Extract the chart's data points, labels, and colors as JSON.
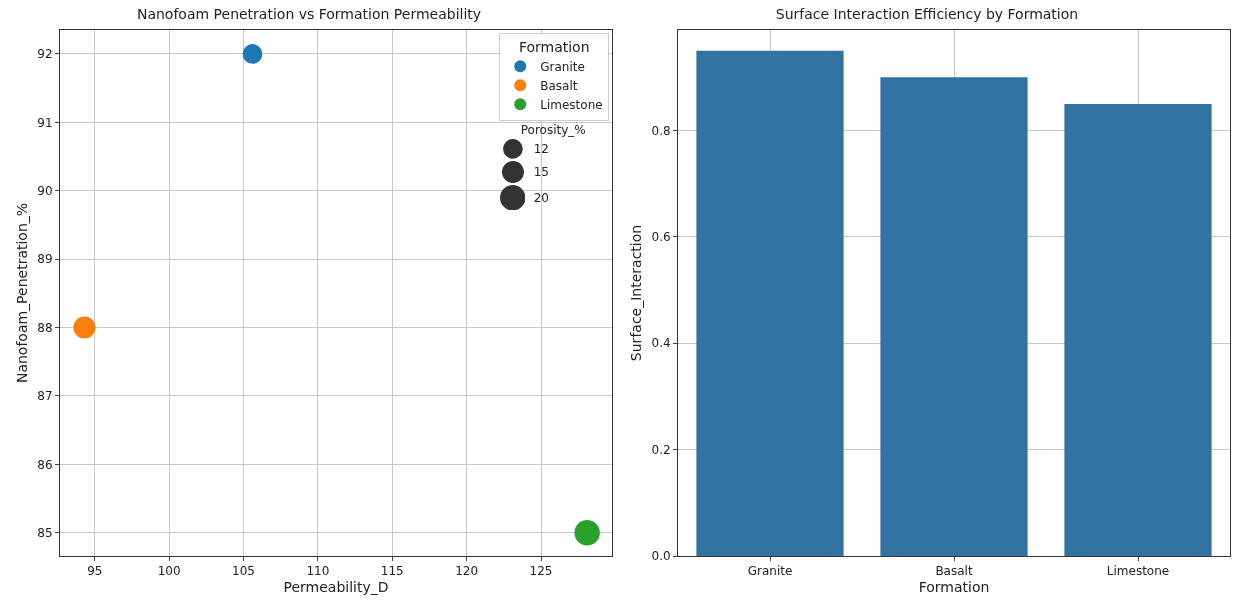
{
  "chart_data": [
    {
      "type": "bubble",
      "title": "Nanofoam Penetration vs Formation Permeability",
      "xlabel": "Permeability_D",
      "ylabel": "Nanofoam_Penetration_%",
      "legend_title": "Formation",
      "series": [
        {
          "name": "Granite",
          "color": "#1f77b4",
          "x": [
            105.6
          ],
          "values": [
            92
          ],
          "sizes": [
            12
          ]
        },
        {
          "name": "Basalt",
          "color": "#ff7f0e",
          "x": [
            94.3
          ],
          "values": [
            88
          ],
          "sizes": [
            15
          ]
        },
        {
          "name": "Limestone",
          "color": "#2ca02c",
          "x": [
            128.1
          ],
          "values": [
            85
          ],
          "sizes": [
            20
          ]
        }
      ],
      "size_legend": [
        12,
        15,
        20
      ],
      "annotations": [
        "Porosity_%"
      ],
      "xlim": [
        92.66,
        129.77
      ],
      "xticks": [
        95,
        100,
        105,
        110,
        115,
        120,
        125
      ],
      "ylim": [
        84.66,
        92.35
      ],
      "yticks": [
        85,
        86,
        87,
        88,
        89,
        90,
        91,
        92
      ],
      "grid": true,
      "legend": "top right",
      "marker": "circle"
    },
    {
      "type": "bar",
      "title": "Surface Interaction Efficiency by Formation",
      "xlabel": "Formation",
      "ylabel": "Surface_Interaction",
      "categories": [
        "Granite",
        "Basalt",
        "Limestone"
      ],
      "values": [
        0.95,
        0.9,
        0.85
      ],
      "color": "#3274a1",
      "ylim": [
        0,
        0.989
      ],
      "yticks": [
        {
          "value": 0,
          "label": "0.0"
        },
        0.2,
        0.4,
        0.6,
        0.8
      ],
      "grid": true
    }
  ]
}
